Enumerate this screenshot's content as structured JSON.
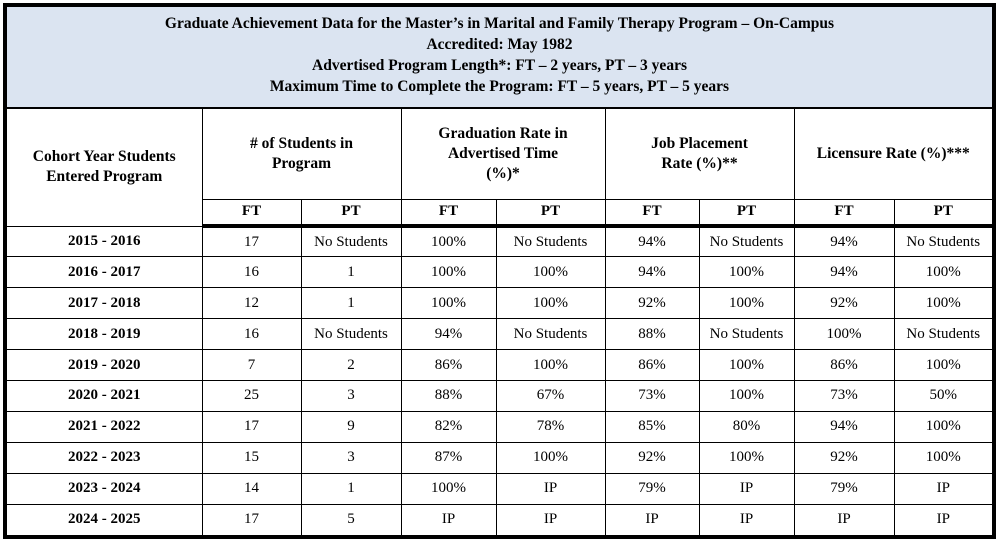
{
  "title_block": {
    "lines": [
      "Graduate Achievement Data for the Master’s in Marital and Family Therapy Program – On-Campus",
      "Accredited: May 1982",
      "Advertised Program Length*: FT – 2 years, PT – 3 years",
      "Maximum Time to Complete the Program: FT – 5 years, PT – 5 years"
    ]
  },
  "colors": {
    "title_background": "#dbe4f1",
    "border": "#000000",
    "cell_background": "#ffffff",
    "text": "#000000"
  },
  "table": {
    "row_header_label": "Cohort Year Students Entered Program",
    "row_header_lines": [
      "Cohort Year Students",
      "Entered Program"
    ],
    "groups": [
      {
        "label": "# of Students in Program",
        "lines": [
          "# of Students in",
          "Program"
        ]
      },
      {
        "label": "Graduation Rate in Advertised Time (%)*",
        "lines": [
          "Graduation Rate in",
          "Advertised Time",
          "(%)*"
        ]
      },
      {
        "label": "Job Placement Rate (%)**",
        "lines": [
          "Job Placement",
          "Rate (%)**"
        ]
      },
      {
        "label": "Licensure Rate (%)***",
        "lines": [
          "Licensure Rate (%)***"
        ]
      }
    ],
    "sub_headers": [
      "FT",
      "PT",
      "FT",
      "PT",
      "FT",
      "PT",
      "FT",
      "PT"
    ],
    "rows": [
      {
        "year": "2015 - 2016",
        "values": [
          "17",
          "No Students",
          "100%",
          "No Students",
          "94%",
          "No Students",
          "94%",
          "No Students"
        ]
      },
      {
        "year": "2016 - 2017",
        "values": [
          "16",
          "1",
          "100%",
          "100%",
          "94%",
          "100%",
          "94%",
          "100%"
        ]
      },
      {
        "year": "2017 - 2018",
        "values": [
          "12",
          "1",
          "100%",
          "100%",
          "92%",
          "100%",
          "92%",
          "100%"
        ]
      },
      {
        "year": "2018 - 2019",
        "values": [
          "16",
          "No Students",
          "94%",
          "No Students",
          "88%",
          "No Students",
          "100%",
          "No Students"
        ]
      },
      {
        "year": "2019 - 2020",
        "values": [
          "7",
          "2",
          "86%",
          "100%",
          "86%",
          "100%",
          "86%",
          "100%"
        ]
      },
      {
        "year": "2020 - 2021",
        "values": [
          "25",
          "3",
          "88%",
          "67%",
          "73%",
          "100%",
          "73%",
          "50%"
        ]
      },
      {
        "year": "2021 - 2022",
        "values": [
          "17",
          "9",
          "82%",
          "78%",
          "85%",
          "80%",
          "94%",
          "100%"
        ]
      },
      {
        "year": "2022 - 2023",
        "values": [
          "15",
          "3",
          "87%",
          "100%",
          "92%",
          "100%",
          "92%",
          "100%"
        ]
      },
      {
        "year": "2023 - 2024",
        "values": [
          "14",
          "1",
          "100%",
          "IP",
          "79%",
          "IP",
          "79%",
          "IP"
        ]
      },
      {
        "year": "2024 - 2025",
        "values": [
          "17",
          "5",
          "IP",
          "IP",
          "IP",
          "IP",
          "IP",
          "IP"
        ]
      }
    ]
  }
}
